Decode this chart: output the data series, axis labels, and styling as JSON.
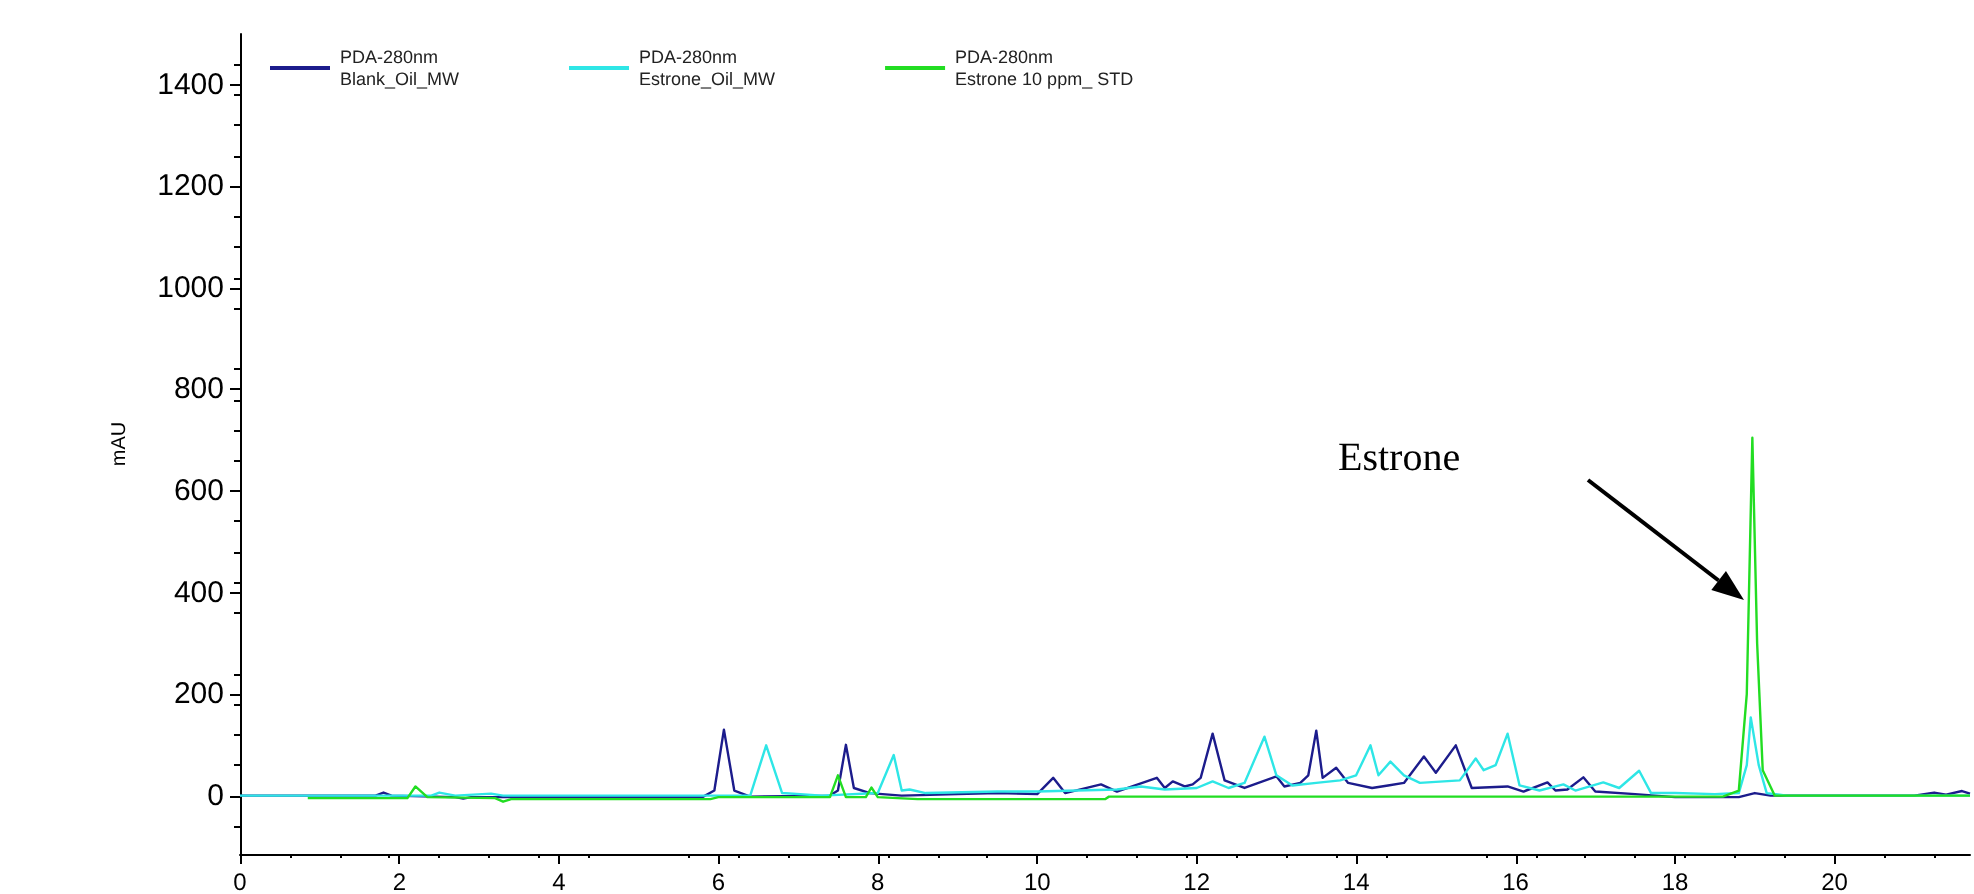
{
  "chart_data": {
    "type": "line",
    "ylabel": "mAU",
    "xlim": [
      0,
      21.7
    ],
    "xticks": [
      0,
      2,
      4,
      6,
      8,
      10,
      12,
      14,
      16,
      18,
      20
    ],
    "ylim": [
      -115,
      1500
    ],
    "yticks": [
      0,
      200,
      400,
      600,
      800,
      1000,
      1200,
      1400
    ],
    "grid": false,
    "legend": "top left",
    "marker": "none",
    "line_style": "solid",
    "annotations": [
      "Estrone"
    ],
    "series": [
      {
        "name": "PDA-280nm\nBlank_Oil_MW",
        "color": "#1c1c8c",
        "x": [
          0,
          0.8,
          1.7,
          1.8,
          1.9,
          2.7,
          2.8,
          2.9,
          3.5,
          5.8,
          5.95,
          6.07,
          6.2,
          6.4,
          7.4,
          7.5,
          7.6,
          7.7,
          7.9,
          8.3,
          9,
          9.5,
          10,
          10.2,
          10.35,
          10.8,
          11,
          11.5,
          11.6,
          11.7,
          11.85,
          11.95,
          12.05,
          12.2,
          12.35,
          12.6,
          13,
          13.1,
          13.3,
          13.4,
          13.5,
          13.58,
          13.75,
          13.9,
          14.2,
          14.4,
          14.6,
          14.85,
          15,
          15.25,
          15.45,
          15.9,
          16.1,
          16.4,
          16.5,
          16.65,
          16.85,
          17,
          17.5,
          18,
          18.8,
          19,
          19.2,
          21,
          21.25,
          21.4,
          21.6,
          21.7
        ],
        "values": [
          0,
          0,
          0,
          6,
          0,
          -3,
          -6,
          -3,
          -3,
          -3,
          10,
          130,
          10,
          -2,
          0,
          10,
          100,
          15,
          5,
          0,
          3,
          5,
          3,
          35,
          5,
          22,
          8,
          35,
          15,
          28,
          18,
          22,
          35,
          122,
          30,
          15,
          38,
          18,
          25,
          40,
          128,
          35,
          55,
          25,
          15,
          20,
          25,
          77,
          45,
          99,
          15,
          18,
          8,
          26,
          10,
          12,
          36,
          8,
          3,
          -3,
          -3,
          5,
          0,
          0,
          6,
          2,
          9,
          4
        ]
      },
      {
        "name": "PDA-280nm\nEstrone_Oil_MW",
        "color": "#2ee6e6",
        "x": [
          0,
          2.4,
          2.5,
          2.7,
          3.15,
          3.3,
          5.6,
          6.4,
          6.6,
          6.8,
          7.3,
          8,
          8.2,
          8.3,
          8.4,
          8.6,
          9.5,
          10,
          10.5,
          11,
          11.3,
          11.6,
          12,
          12.2,
          12.4,
          12.6,
          12.85,
          13,
          13.2,
          13.5,
          13.8,
          14,
          14.18,
          14.28,
          14.43,
          14.6,
          14.8,
          15.3,
          15.5,
          15.6,
          15.75,
          15.9,
          16.05,
          16.3,
          16.6,
          16.75,
          17.1,
          17.3,
          17.55,
          17.7,
          18,
          18.5,
          18.8,
          18.9,
          18.95,
          19.05,
          19.15,
          19.4,
          21.7
        ],
        "values": [
          0,
          0,
          6,
          0,
          4,
          0,
          0,
          0,
          99,
          5,
          0,
          5,
          80,
          10,
          12,
          5,
          8,
          8,
          10,
          12,
          18,
          12,
          15,
          28,
          15,
          25,
          116,
          40,
          20,
          25,
          30,
          40,
          99,
          40,
          67,
          40,
          25,
          30,
          73,
          50,
          60,
          122,
          20,
          10,
          22,
          10,
          26,
          15,
          49,
          5,
          5,
          3,
          5,
          60,
          154,
          60,
          5,
          0,
          0
        ]
      },
      {
        "name": "PDA-280nm\nEstrone 10 ppm_ STD",
        "color": "#22dd22",
        "x": [
          0.85,
          2.1,
          2.2,
          2.35,
          3.2,
          3.3,
          3.4,
          5.9,
          6,
          7.4,
          7.5,
          7.6,
          7.85,
          7.92,
          8,
          8.5,
          10.85,
          10.9,
          18.6,
          18.8,
          18.9,
          18.97,
          19.03,
          19.1,
          19.25,
          21.7
        ],
        "values": [
          -5,
          -5,
          18,
          -3,
          -5,
          -12,
          -7,
          -7,
          -3,
          -3,
          40,
          -3,
          -3,
          16,
          -3,
          -7,
          -7,
          -2,
          -2,
          10,
          200,
          705,
          300,
          50,
          0,
          0
        ]
      }
    ]
  }
}
